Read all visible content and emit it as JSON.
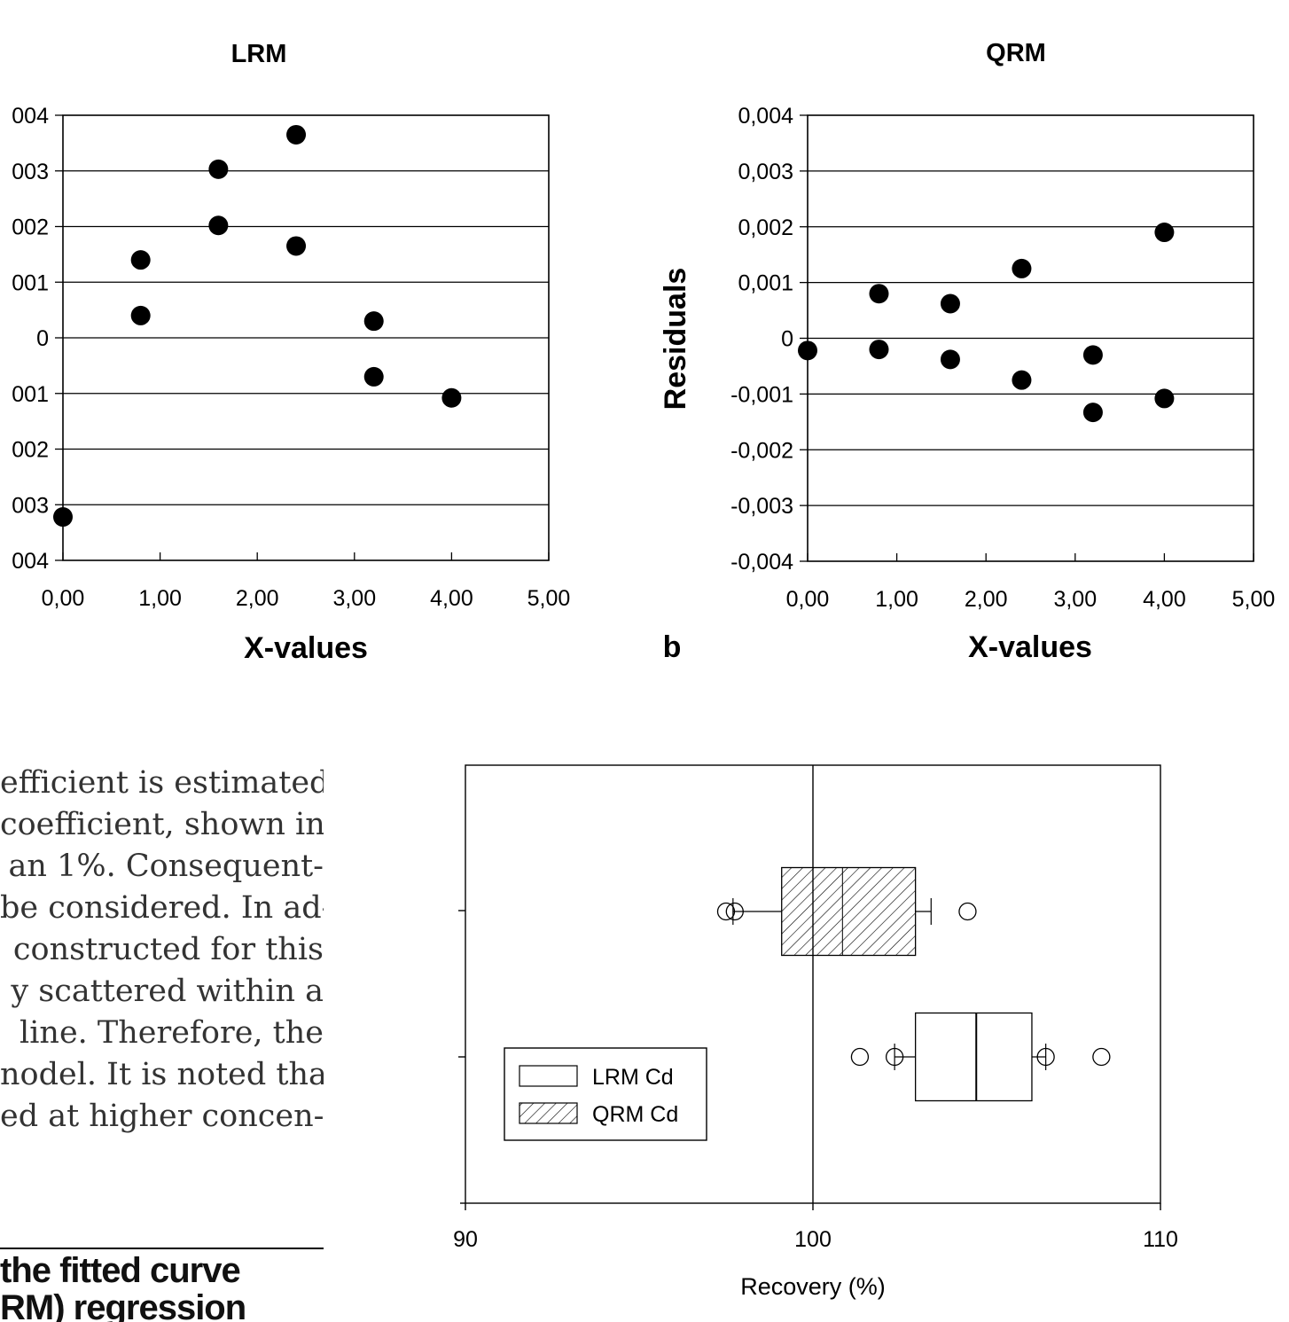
{
  "body_text": [
    "efficient is estimated.",
    "coefficient, shown in",
    "an 1%. Consequent-",
    "be considered. In ad-",
    "constructed for this",
    "y scattered within a",
    "line. Therefore, the",
    "nodel. It is noted that",
    "ed at higher concen-"
  ],
  "caption": [
    "the fitted curve",
    "RM) regression"
  ],
  "panel_b_letter": "b",
  "chart_data": [
    {
      "type": "scatter",
      "title": "LRM",
      "xlabel": "X-values",
      "ylabel": "",
      "xlim": [
        0,
        5
      ],
      "ylim": [
        -0.004,
        0.004
      ],
      "x_ticks": [
        "0,00",
        "1,00",
        "2,00",
        "3,00",
        "4,00",
        "5,00"
      ],
      "y_ticks": [
        "004",
        "003",
        "002",
        "001",
        "0",
        "001",
        "002",
        "003",
        "004"
      ],
      "grid": "horizontal",
      "points": [
        {
          "x": 0.0,
          "y": -0.00322
        },
        {
          "x": 0.8,
          "y": 0.0014
        },
        {
          "x": 0.8,
          "y": 0.0004
        },
        {
          "x": 1.6,
          "y": 0.00303
        },
        {
          "x": 1.6,
          "y": 0.00202
        },
        {
          "x": 2.4,
          "y": 0.00365
        },
        {
          "x": 2.4,
          "y": 0.00165
        },
        {
          "x": 3.2,
          "y": 0.0003
        },
        {
          "x": 3.2,
          "y": -0.0007
        },
        {
          "x": 4.0,
          "y": -0.00108
        }
      ]
    },
    {
      "type": "scatter",
      "title": "QRM",
      "xlabel": "X-values",
      "ylabel": "Residuals",
      "xlim": [
        0,
        5
      ],
      "ylim": [
        -0.004,
        0.004
      ],
      "x_ticks": [
        "0,00",
        "1,00",
        "2,00",
        "3,00",
        "4,00",
        "5,00"
      ],
      "y_ticks": [
        "0,004",
        "0,003",
        "0,002",
        "0,001",
        "0",
        "-0,001",
        "-0,002",
        "-0,003",
        "-0,004"
      ],
      "grid": "horizontal",
      "points": [
        {
          "x": 0.0,
          "y": -0.00022
        },
        {
          "x": 0.8,
          "y": 0.0008
        },
        {
          "x": 0.8,
          "y": -0.0002
        },
        {
          "x": 1.6,
          "y": 0.00062
        },
        {
          "x": 1.6,
          "y": -0.00038
        },
        {
          "x": 2.4,
          "y": 0.00125
        },
        {
          "x": 2.4,
          "y": -0.00075
        },
        {
          "x": 3.2,
          "y": -0.0003
        },
        {
          "x": 3.2,
          "y": -0.00133
        },
        {
          "x": 4.0,
          "y": 0.0019
        },
        {
          "x": 4.0,
          "y": -0.00108
        }
      ]
    },
    {
      "type": "box",
      "xlabel": "Recovery (%)",
      "xlim": [
        90,
        110
      ],
      "x_ticks": [
        "90",
        "100",
        "110"
      ],
      "reference_line": 100,
      "legend_position": "bottom-left",
      "series": [
        {
          "name": "QRM Cd",
          "pattern": "hatched",
          "q1": 99.1,
          "median": 100.85,
          "q3": 102.95,
          "whisker_low": 97.7,
          "whisker_high": 103.4,
          "outliers": [
            97.5,
            97.75,
            104.45
          ]
        },
        {
          "name": "LRM Cd",
          "pattern": "open",
          "q1": 102.95,
          "median": 104.7,
          "q3": 106.3,
          "whisker_low": 102.35,
          "whisker_high": 106.7,
          "outliers": [
            101.35,
            102.35,
            106.7,
            108.3
          ]
        }
      ]
    }
  ]
}
